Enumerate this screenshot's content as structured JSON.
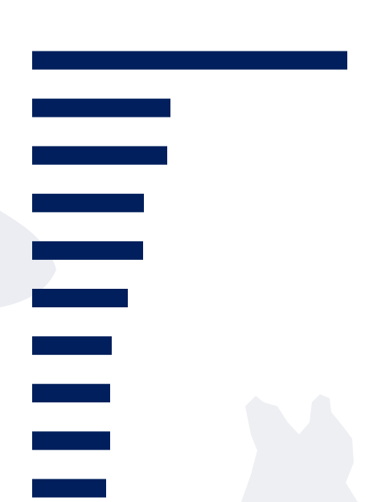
{
  "chart_data": {
    "type": "hbar",
    "categories": [
      null,
      null,
      null,
      null,
      null,
      null,
      null,
      null,
      null,
      null
    ],
    "values": [
      392,
      172,
      168,
      139,
      138,
      119,
      99,
      97,
      97,
      92
    ],
    "color": "#001f5c",
    "xlim": [
      0,
      392
    ]
  }
}
